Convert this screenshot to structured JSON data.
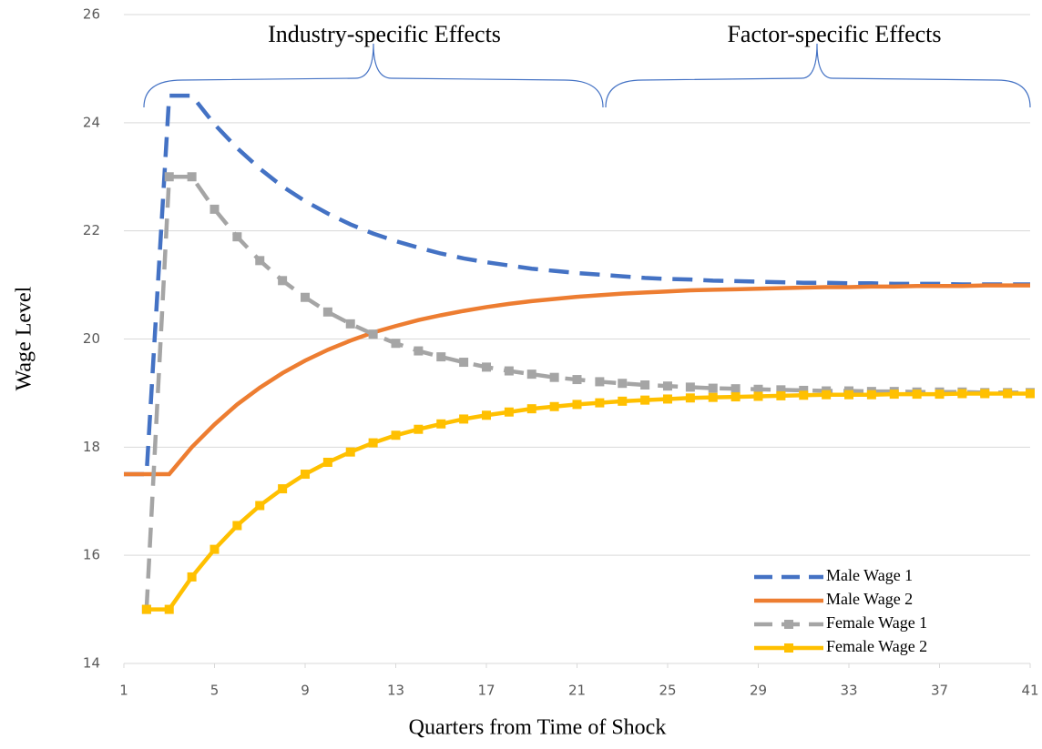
{
  "chart_data": {
    "type": "line",
    "x": [
      1,
      2,
      3,
      4,
      5,
      6,
      7,
      8,
      9,
      10,
      11,
      12,
      13,
      14,
      15,
      16,
      17,
      18,
      19,
      20,
      21,
      22,
      23,
      24,
      25,
      26,
      27,
      28,
      29,
      30,
      31,
      32,
      33,
      34,
      35,
      36,
      37,
      38,
      39,
      40,
      41
    ],
    "xlabel": "Quarters from Time of Shock",
    "ylabel": "Wage Level",
    "xlim": [
      1,
      41
    ],
    "xticks": [
      1,
      5,
      9,
      13,
      17,
      21,
      25,
      29,
      33,
      37,
      41
    ],
    "ylim": [
      14,
      26
    ],
    "yticks": [
      14,
      16,
      18,
      20,
      22,
      24,
      26
    ],
    "grid": true,
    "legend": "lower right",
    "annotations": [
      "Industry-specific Effects",
      "Factor-specific Effects"
    ],
    "series": [
      {
        "name": "Male Wage 1",
        "color": "#4472c4",
        "dash": "dashed",
        "marker": "none",
        "values": [
          17.5,
          17.5,
          24.5,
          24.5,
          23.97,
          23.53,
          23.15,
          22.82,
          22.55,
          22.32,
          22.12,
          21.95,
          21.81,
          21.69,
          21.58,
          21.49,
          21.42,
          21.36,
          21.3,
          21.26,
          21.22,
          21.19,
          21.16,
          21.13,
          21.11,
          21.1,
          21.08,
          21.07,
          21.06,
          21.05,
          21.04,
          21.04,
          21.03,
          21.03,
          21.02,
          21.02,
          21.02,
          21.01,
          21.01,
          21.01,
          21.01
        ]
      },
      {
        "name": "Male Wage 2",
        "color": "#ed7d31",
        "dash": "solid",
        "marker": "none",
        "values": [
          17.5,
          17.5,
          17.5,
          18.0,
          18.42,
          18.79,
          19.1,
          19.37,
          19.6,
          19.8,
          19.97,
          20.12,
          20.24,
          20.35,
          20.44,
          20.52,
          20.59,
          20.65,
          20.7,
          20.74,
          20.78,
          20.81,
          20.84,
          20.86,
          20.88,
          20.9,
          20.91,
          20.92,
          20.93,
          20.94,
          20.95,
          20.96,
          20.96,
          20.97,
          20.97,
          20.98,
          20.98,
          20.98,
          20.99,
          20.99,
          20.99
        ]
      },
      {
        "name": "Female Wage 1",
        "color": "#a5a5a5",
        "dash": "dashed",
        "marker": "square",
        "values": [
          null,
          15,
          23,
          23,
          22.4,
          21.89,
          21.45,
          21.08,
          20.77,
          20.5,
          20.28,
          20.09,
          19.92,
          19.78,
          19.67,
          19.57,
          19.48,
          19.41,
          19.35,
          19.29,
          19.25,
          19.21,
          19.18,
          19.15,
          19.13,
          19.11,
          19.09,
          19.08,
          19.07,
          19.06,
          19.05,
          19.04,
          19.04,
          19.03,
          19.03,
          19.02,
          19.02,
          19.02,
          19.01,
          19.01,
          19.01
        ]
      },
      {
        "name": "Female Wage 2",
        "color": "#ffc000",
        "dash": "solid",
        "marker": "square",
        "values": [
          null,
          15,
          15,
          15.6,
          16.11,
          16.55,
          16.92,
          17.23,
          17.5,
          17.72,
          17.91,
          18.08,
          18.22,
          18.33,
          18.43,
          18.52,
          18.59,
          18.65,
          18.71,
          18.75,
          18.79,
          18.82,
          18.85,
          18.87,
          18.89,
          18.91,
          18.92,
          18.93,
          18.94,
          18.95,
          18.96,
          18.97,
          18.97,
          18.97,
          18.98,
          18.98,
          18.98,
          18.99,
          18.99,
          18.99,
          18.99
        ]
      }
    ]
  }
}
